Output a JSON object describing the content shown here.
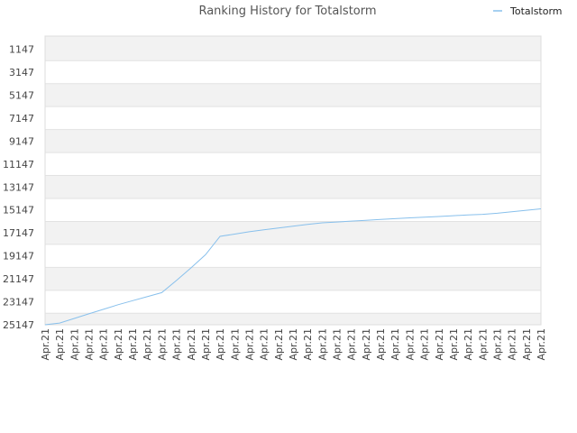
{
  "chart_data": {
    "type": "line",
    "title": "Ranking History for Totalstorm",
    "xlabel": "",
    "ylabel": "",
    "legend": {
      "position": "top-right",
      "entries": [
        "Totalstorm"
      ]
    },
    "y_inverted": true,
    "ylim": [
      1147,
      25147
    ],
    "yticks": [
      1147,
      3147,
      5147,
      7147,
      9147,
      11147,
      13147,
      15147,
      17147,
      19147,
      21147,
      23147,
      25147
    ],
    "x": [
      "Apr.21",
      "Apr.21",
      "Apr.21",
      "Apr.21",
      "Apr.21",
      "Apr.21",
      "Apr.21",
      "Apr.21",
      "Apr.21",
      "Apr.21",
      "Apr.21",
      "Apr.21",
      "Apr.21",
      "Apr.21",
      "Apr.21",
      "Apr.21",
      "Apr.21",
      "Apr.21",
      "Apr.21",
      "Apr.21",
      "Apr.21",
      "Apr.21",
      "Apr.21",
      "Apr.21",
      "Apr.21",
      "Apr.21",
      "Apr.21",
      "Apr.21",
      "Apr.21",
      "Apr.21",
      "Apr.21",
      "Apr.21",
      "Apr.21",
      "Apr.21",
      "Apr.21"
    ],
    "series": [
      {
        "name": "Totalstorm",
        "color": "#88c0ec",
        "values": [
          25147,
          25000,
          24600,
          24200,
          23800,
          23400,
          23050,
          22700,
          22350,
          21300,
          20200,
          19050,
          17450,
          17250,
          17050,
          16880,
          16720,
          16560,
          16410,
          16270,
          16200,
          16120,
          16050,
          15980,
          15910,
          15840,
          15780,
          15720,
          15650,
          15590,
          15530,
          15440,
          15310,
          15180,
          15050
        ]
      }
    ],
    "grid": true,
    "band_colors": [
      "#f2f2f2",
      "#ffffff"
    ]
  }
}
